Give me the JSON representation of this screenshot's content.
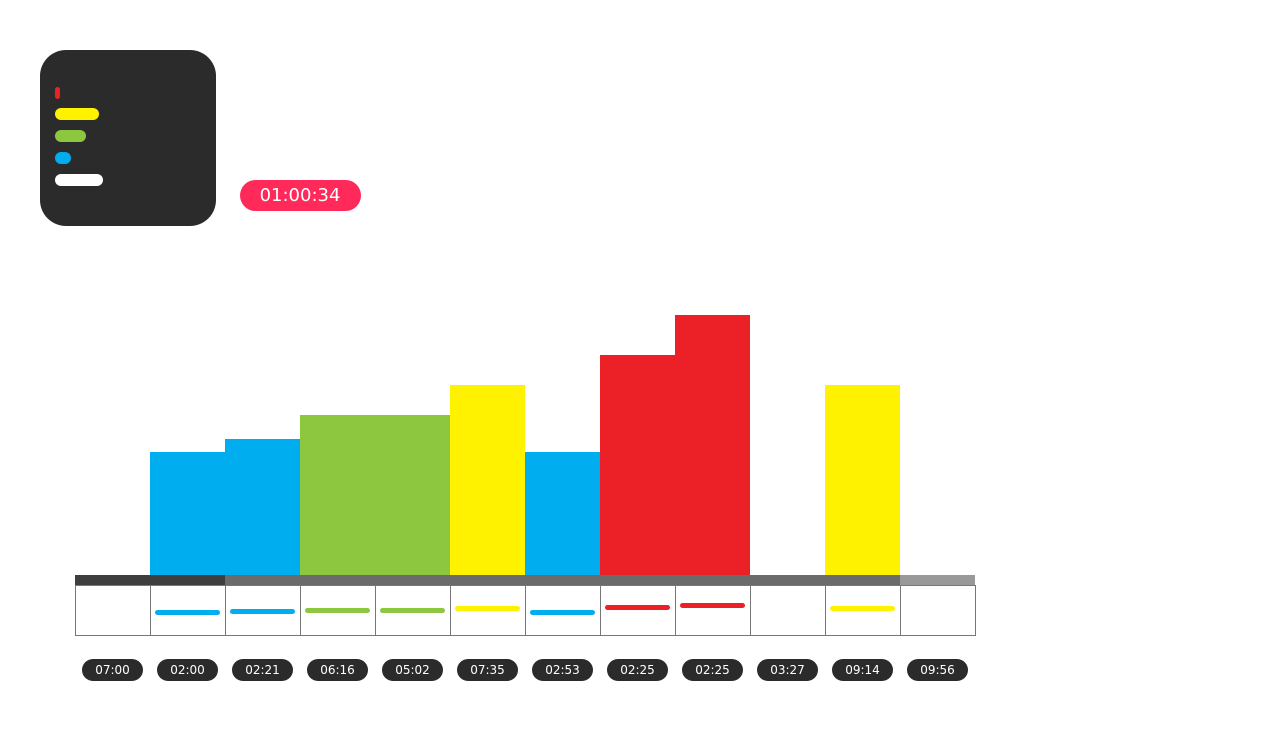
{
  "timer": "01:00:34",
  "chart_data": {
    "type": "bar",
    "categories": [
      "07:00",
      "02:00",
      "02:21",
      "06:16",
      "05:02",
      "07:35",
      "02:53",
      "02:25",
      "02:25",
      "03:27",
      "09:14",
      "09:56"
    ],
    "values": [
      0,
      123,
      136,
      160,
      160,
      190,
      123,
      220,
      260,
      0,
      190,
      0
    ],
    "colors": [
      "#ffffff",
      "#00aeef",
      "#00aeef",
      "#8dc63f",
      "#8dc63f",
      "#fff200",
      "#00aeef",
      "#ec2027",
      "#ec2027",
      "#ffffff",
      "#fff200",
      "#ffffff"
    ],
    "ylim": [
      0,
      300
    ]
  }
}
